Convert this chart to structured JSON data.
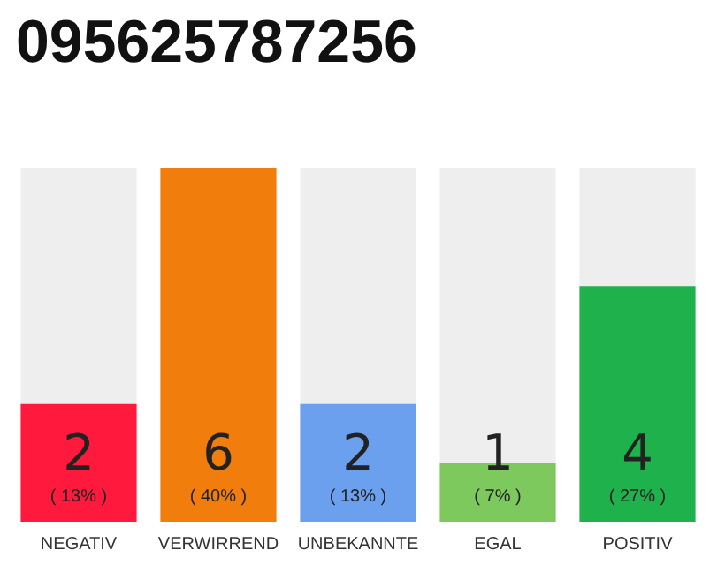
{
  "chart_data": {
    "type": "bar",
    "title": "095625787256",
    "categories": [
      "NEGATIV",
      "VERWIRREND",
      "UNBEKANNTE",
      "EGAL",
      "POSITIV"
    ],
    "values": [
      2,
      6,
      2,
      1,
      4
    ],
    "colors": [
      "#ff1a3d",
      "#f07d0c",
      "#6aa0ee",
      "#7dc95e",
      "#1eb14c"
    ],
    "value_labels": [
      "2\n( 13% )",
      "6\n( 40% )",
      "2\n( 13% )",
      "1\n( 7% )",
      "4\n( 27% )"
    ],
    "tick_labels": "x",
    "grid": false
  }
}
